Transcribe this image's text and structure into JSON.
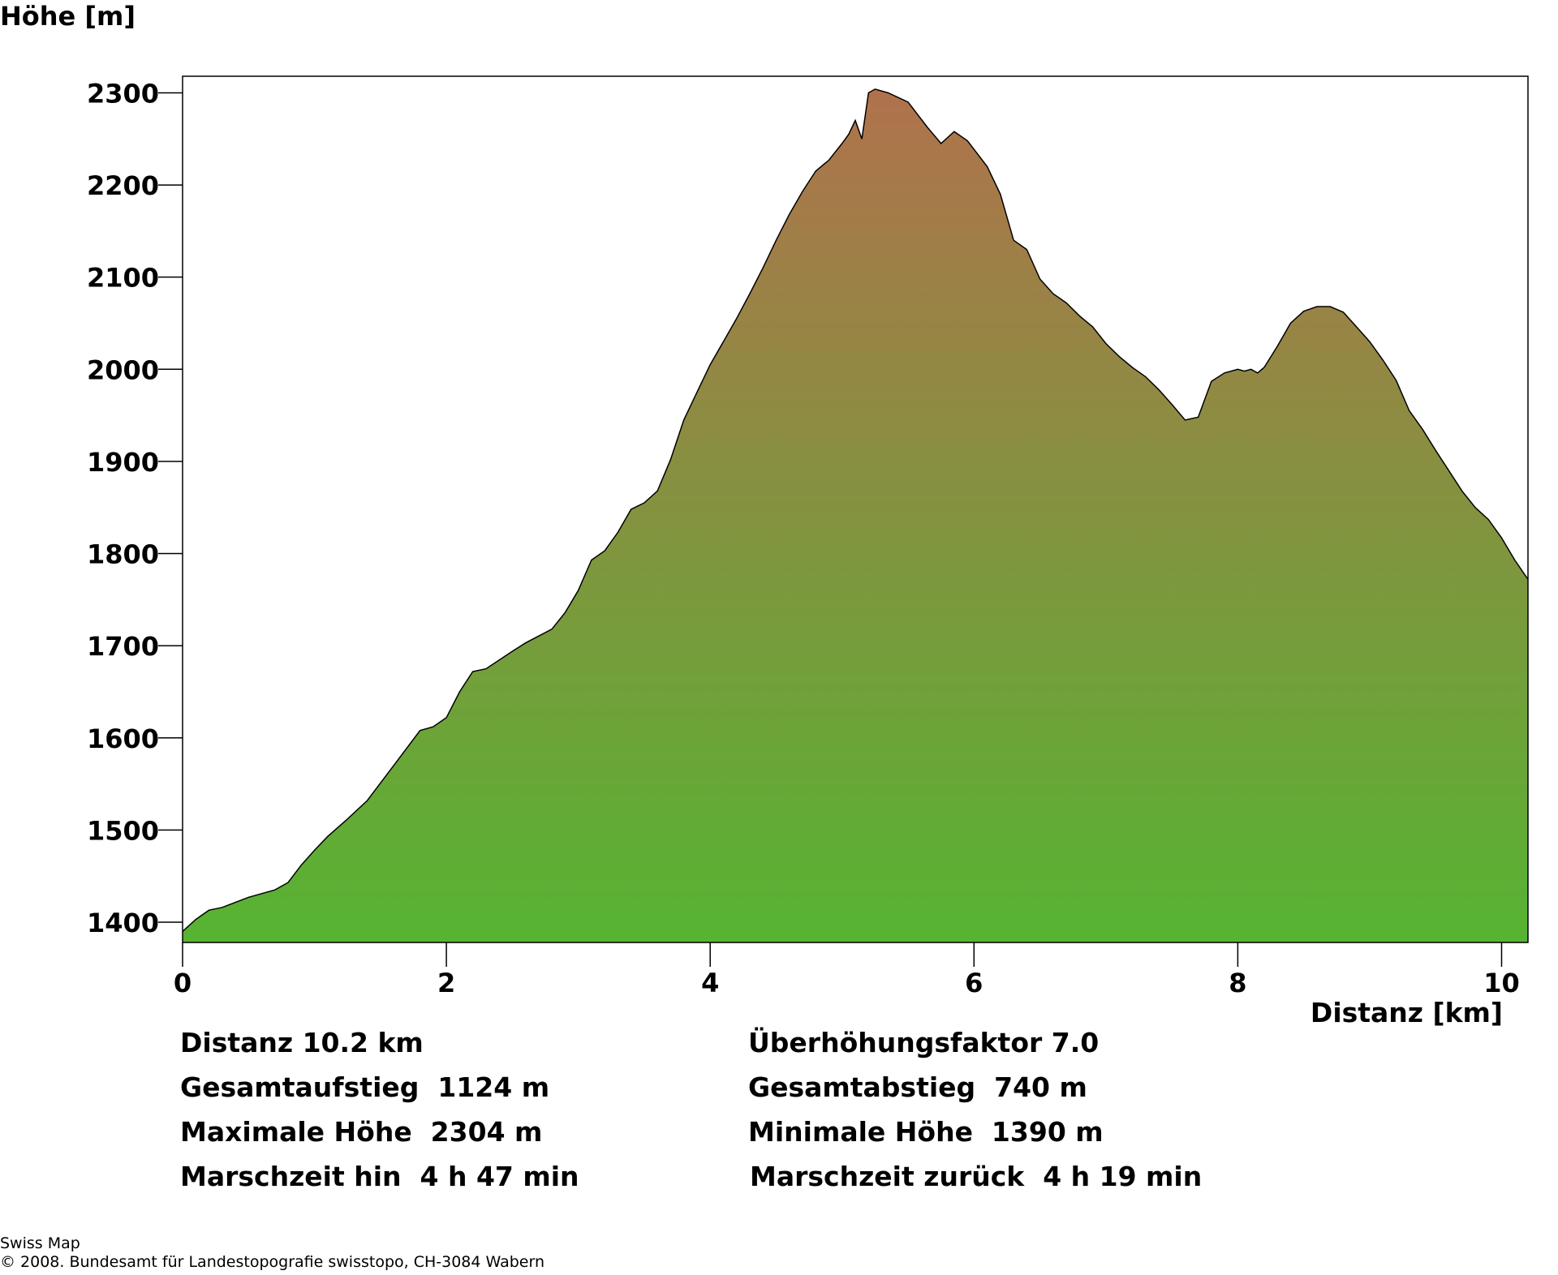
{
  "chart_data": {
    "type": "area",
    "ylabel": "Höhe [m]",
    "xlabel": "Distanz [km]",
    "xlim": [
      0,
      10.2
    ],
    "ylim": [
      1378,
      2318
    ],
    "x_ticks": [
      0,
      2,
      4,
      6,
      8,
      10
    ],
    "y_ticks": [
      1400,
      1500,
      1600,
      1700,
      1800,
      1900,
      2000,
      2100,
      2200,
      2300
    ],
    "x_tick_labels": [
      "0",
      "2",
      "4",
      "6",
      "8",
      "10"
    ],
    "y_tick_labels": [
      "1400",
      "1500",
      "1600",
      "1700",
      "1800",
      "1900",
      "2000",
      "2100",
      "2200",
      "2300"
    ],
    "grid": false,
    "fill_gradient": {
      "top": "#b0724c",
      "bottom": "#56b432"
    },
    "line_color": "#000000",
    "series": [
      {
        "x": [
          0,
          0.1,
          0.2,
          0.3,
          0.5,
          0.7,
          0.8,
          0.9,
          1.0,
          1.1,
          1.25,
          1.4,
          1.6,
          1.8,
          1.9,
          2.0,
          2.1,
          2.2,
          2.3,
          2.5,
          2.6,
          2.8,
          2.9,
          3.0,
          3.1,
          3.2,
          3.3,
          3.4,
          3.5,
          3.6,
          3.7,
          3.8,
          3.9,
          4.0,
          4.1,
          4.2,
          4.3,
          4.4,
          4.5,
          4.6,
          4.7,
          4.8,
          4.9,
          5.0,
          5.05,
          5.1,
          5.15,
          5.2,
          5.25,
          5.35,
          5.5,
          5.65,
          5.75,
          5.85,
          5.95,
          6.1,
          6.2,
          6.3,
          6.4,
          6.5,
          6.6,
          6.7,
          6.8,
          6.9,
          7.0,
          7.1,
          7.2,
          7.3,
          7.4,
          7.5,
          7.6,
          7.7,
          7.8,
          7.9,
          8.0,
          8.05,
          8.1,
          8.15,
          8.2,
          8.3,
          8.4,
          8.5,
          8.6,
          8.7,
          8.8,
          8.9,
          9.0,
          9.1,
          9.2,
          9.3,
          9.4,
          9.5,
          9.6,
          9.7,
          9.8,
          9.9,
          10.0,
          10.1,
          10.2
        ],
        "y": [
          1390,
          1403,
          1413,
          1416,
          1427,
          1435,
          1443,
          1462,
          1478,
          1493,
          1512,
          1532,
          1570,
          1608,
          1612,
          1622,
          1650,
          1672,
          1675,
          1694,
          1703,
          1718,
          1736,
          1760,
          1793,
          1803,
          1823,
          1848,
          1855,
          1868,
          1902,
          1945,
          1975,
          2005,
          2030,
          2055,
          2082,
          2110,
          2140,
          2168,
          2193,
          2215,
          2227,
          2245,
          2255,
          2270,
          2250,
          2300,
          2304,
          2300,
          2290,
          2262,
          2245,
          2258,
          2248,
          2220,
          2190,
          2140,
          2130,
          2098,
          2082,
          2072,
          2058,
          2046,
          2028,
          2014,
          2002,
          1992,
          1978,
          1962,
          1945,
          1948,
          1987,
          1996,
          2000,
          1998,
          2000,
          1996,
          2002,
          2025,
          2050,
          2063,
          2068,
          2068,
          2062,
          2046,
          2030,
          2010,
          1988,
          1955,
          1935,
          1912,
          1890,
          1868,
          1850,
          1837,
          1817,
          1793,
          1772
        ]
      }
    ]
  },
  "stats": {
    "left": [
      "Distanz 10.2 km",
      "Gesamtaufstieg  1124 m",
      "Maximale Höhe  2304 m",
      "Marschzeit hin  4 h 47 min"
    ],
    "right": [
      "Überhöhungsfaktor 7.0",
      "Gesamtabstieg  740 m",
      "Minimale Höhe  1390 m",
      "Marschzeit zurück  4 h 19 min"
    ]
  },
  "footer": {
    "line1": "Swiss Map",
    "line2": "© 2008. Bundesamt für Landestopografie swisstopo, CH-3084 Wabern"
  }
}
